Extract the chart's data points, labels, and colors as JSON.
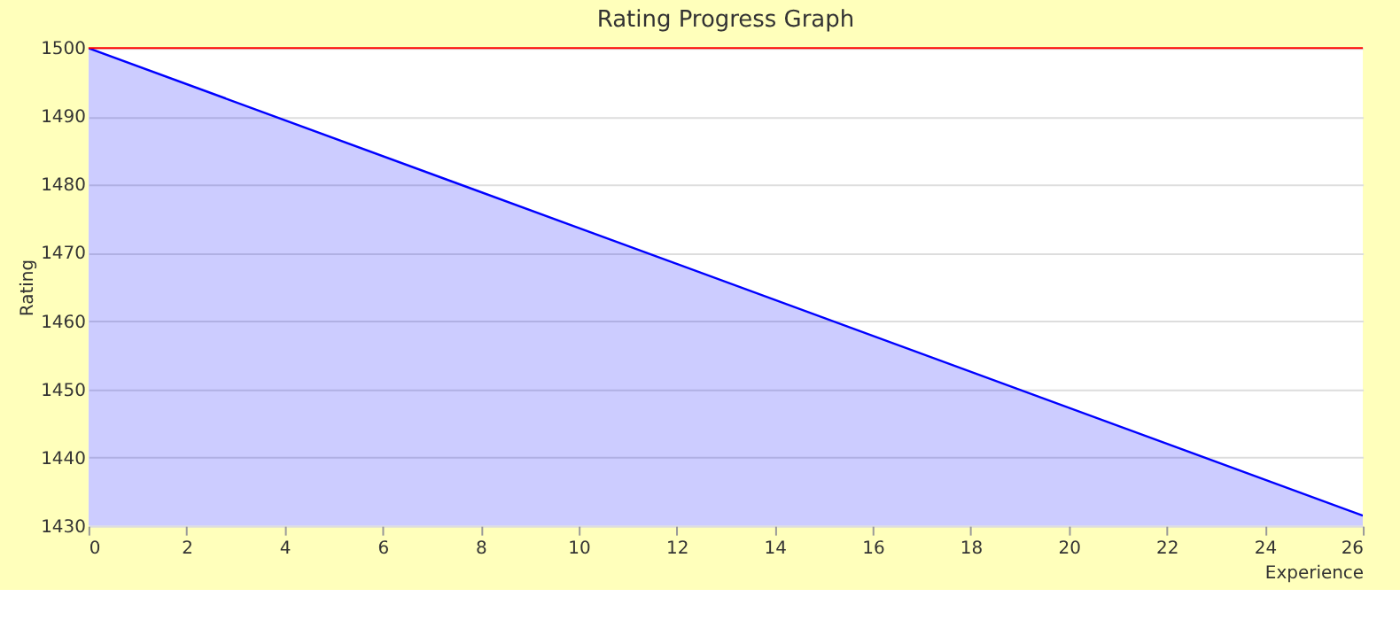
{
  "chart_data": {
    "type": "area",
    "title": "Rating Progress Graph",
    "xlabel": "Experience",
    "ylabel": "Rating",
    "x": [
      0,
      26
    ],
    "series": [
      {
        "color": "#0000ff",
        "values": [
          1500,
          1431.5
        ]
      }
    ],
    "xlim": [
      0,
      26
    ],
    "xticks": [
      0,
      2,
      4,
      6,
      8,
      10,
      12,
      14,
      16,
      18,
      20,
      22,
      24,
      26
    ],
    "ylim": [
      1430,
      1500
    ],
    "yticks": [
      1430,
      1440,
      1450,
      1460,
      1470,
      1480,
      1490,
      1500
    ],
    "grid": "y",
    "marker": "none",
    "line_style": "solid",
    "ref_lines": [
      {
        "axis": "y",
        "value": 1500,
        "color": "#ff0000"
      }
    ]
  }
}
